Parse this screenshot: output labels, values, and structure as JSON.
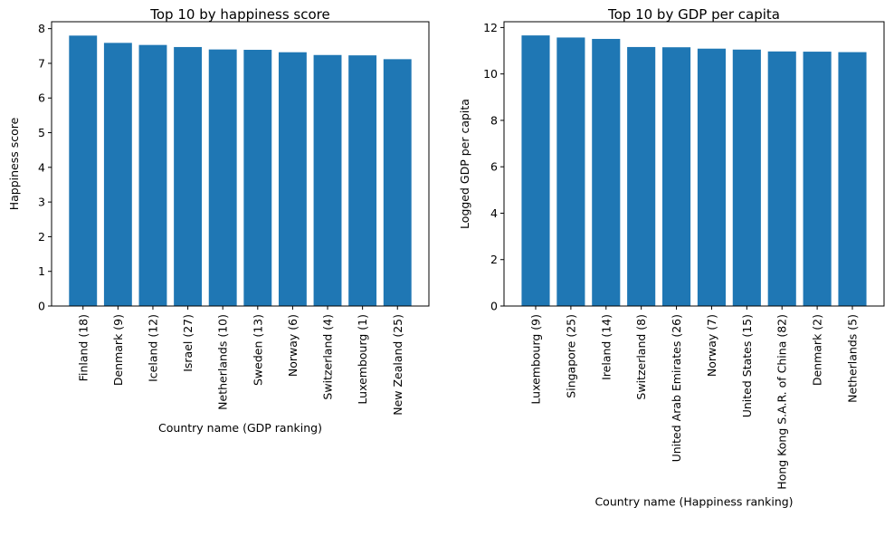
{
  "chart_data": [
    {
      "type": "bar",
      "title": "Top 10 by happiness score",
      "xlabel": "Country name (GDP ranking)",
      "ylabel": "Happiness score",
      "categories": [
        "Finland (18)",
        "Denmark (9)",
        "Iceland (12)",
        "Israel (27)",
        "Netherlands (10)",
        "Sweden (13)",
        "Norway (6)",
        "Switzerland (4)",
        "Luxembourg (1)",
        "New Zealand (25)"
      ],
      "values": [
        7.8,
        7.59,
        7.53,
        7.47,
        7.4,
        7.39,
        7.32,
        7.24,
        7.23,
        7.12
      ],
      "ylim": [
        0,
        8.2
      ],
      "yticks": [
        0,
        1,
        2,
        3,
        4,
        5,
        6,
        7,
        8
      ],
      "bar_color": "#1f77b4",
      "grid": false,
      "legend": "none"
    },
    {
      "type": "bar",
      "title": "Top 10 by GDP per capita",
      "xlabel": "Country name (Happiness ranking)",
      "ylabel": "Logged GDP per capita",
      "categories": [
        "Luxembourg (9)",
        "Singapore (25)",
        "Ireland (14)",
        "Switzerland (8)",
        "United Arab Emirates (26)",
        "Norway (7)",
        "United States (15)",
        "Hong Kong S.A.R. of China (82)",
        "Denmark (2)",
        "Netherlands (5)"
      ],
      "values": [
        11.66,
        11.57,
        11.51,
        11.16,
        11.15,
        11.09,
        11.05,
        10.97,
        10.96,
        10.94
      ],
      "ylim": [
        0,
        12.25
      ],
      "yticks": [
        0,
        2,
        4,
        6,
        8,
        10,
        12
      ],
      "bar_color": "#1f77b4",
      "grid": false,
      "legend": "none"
    }
  ]
}
